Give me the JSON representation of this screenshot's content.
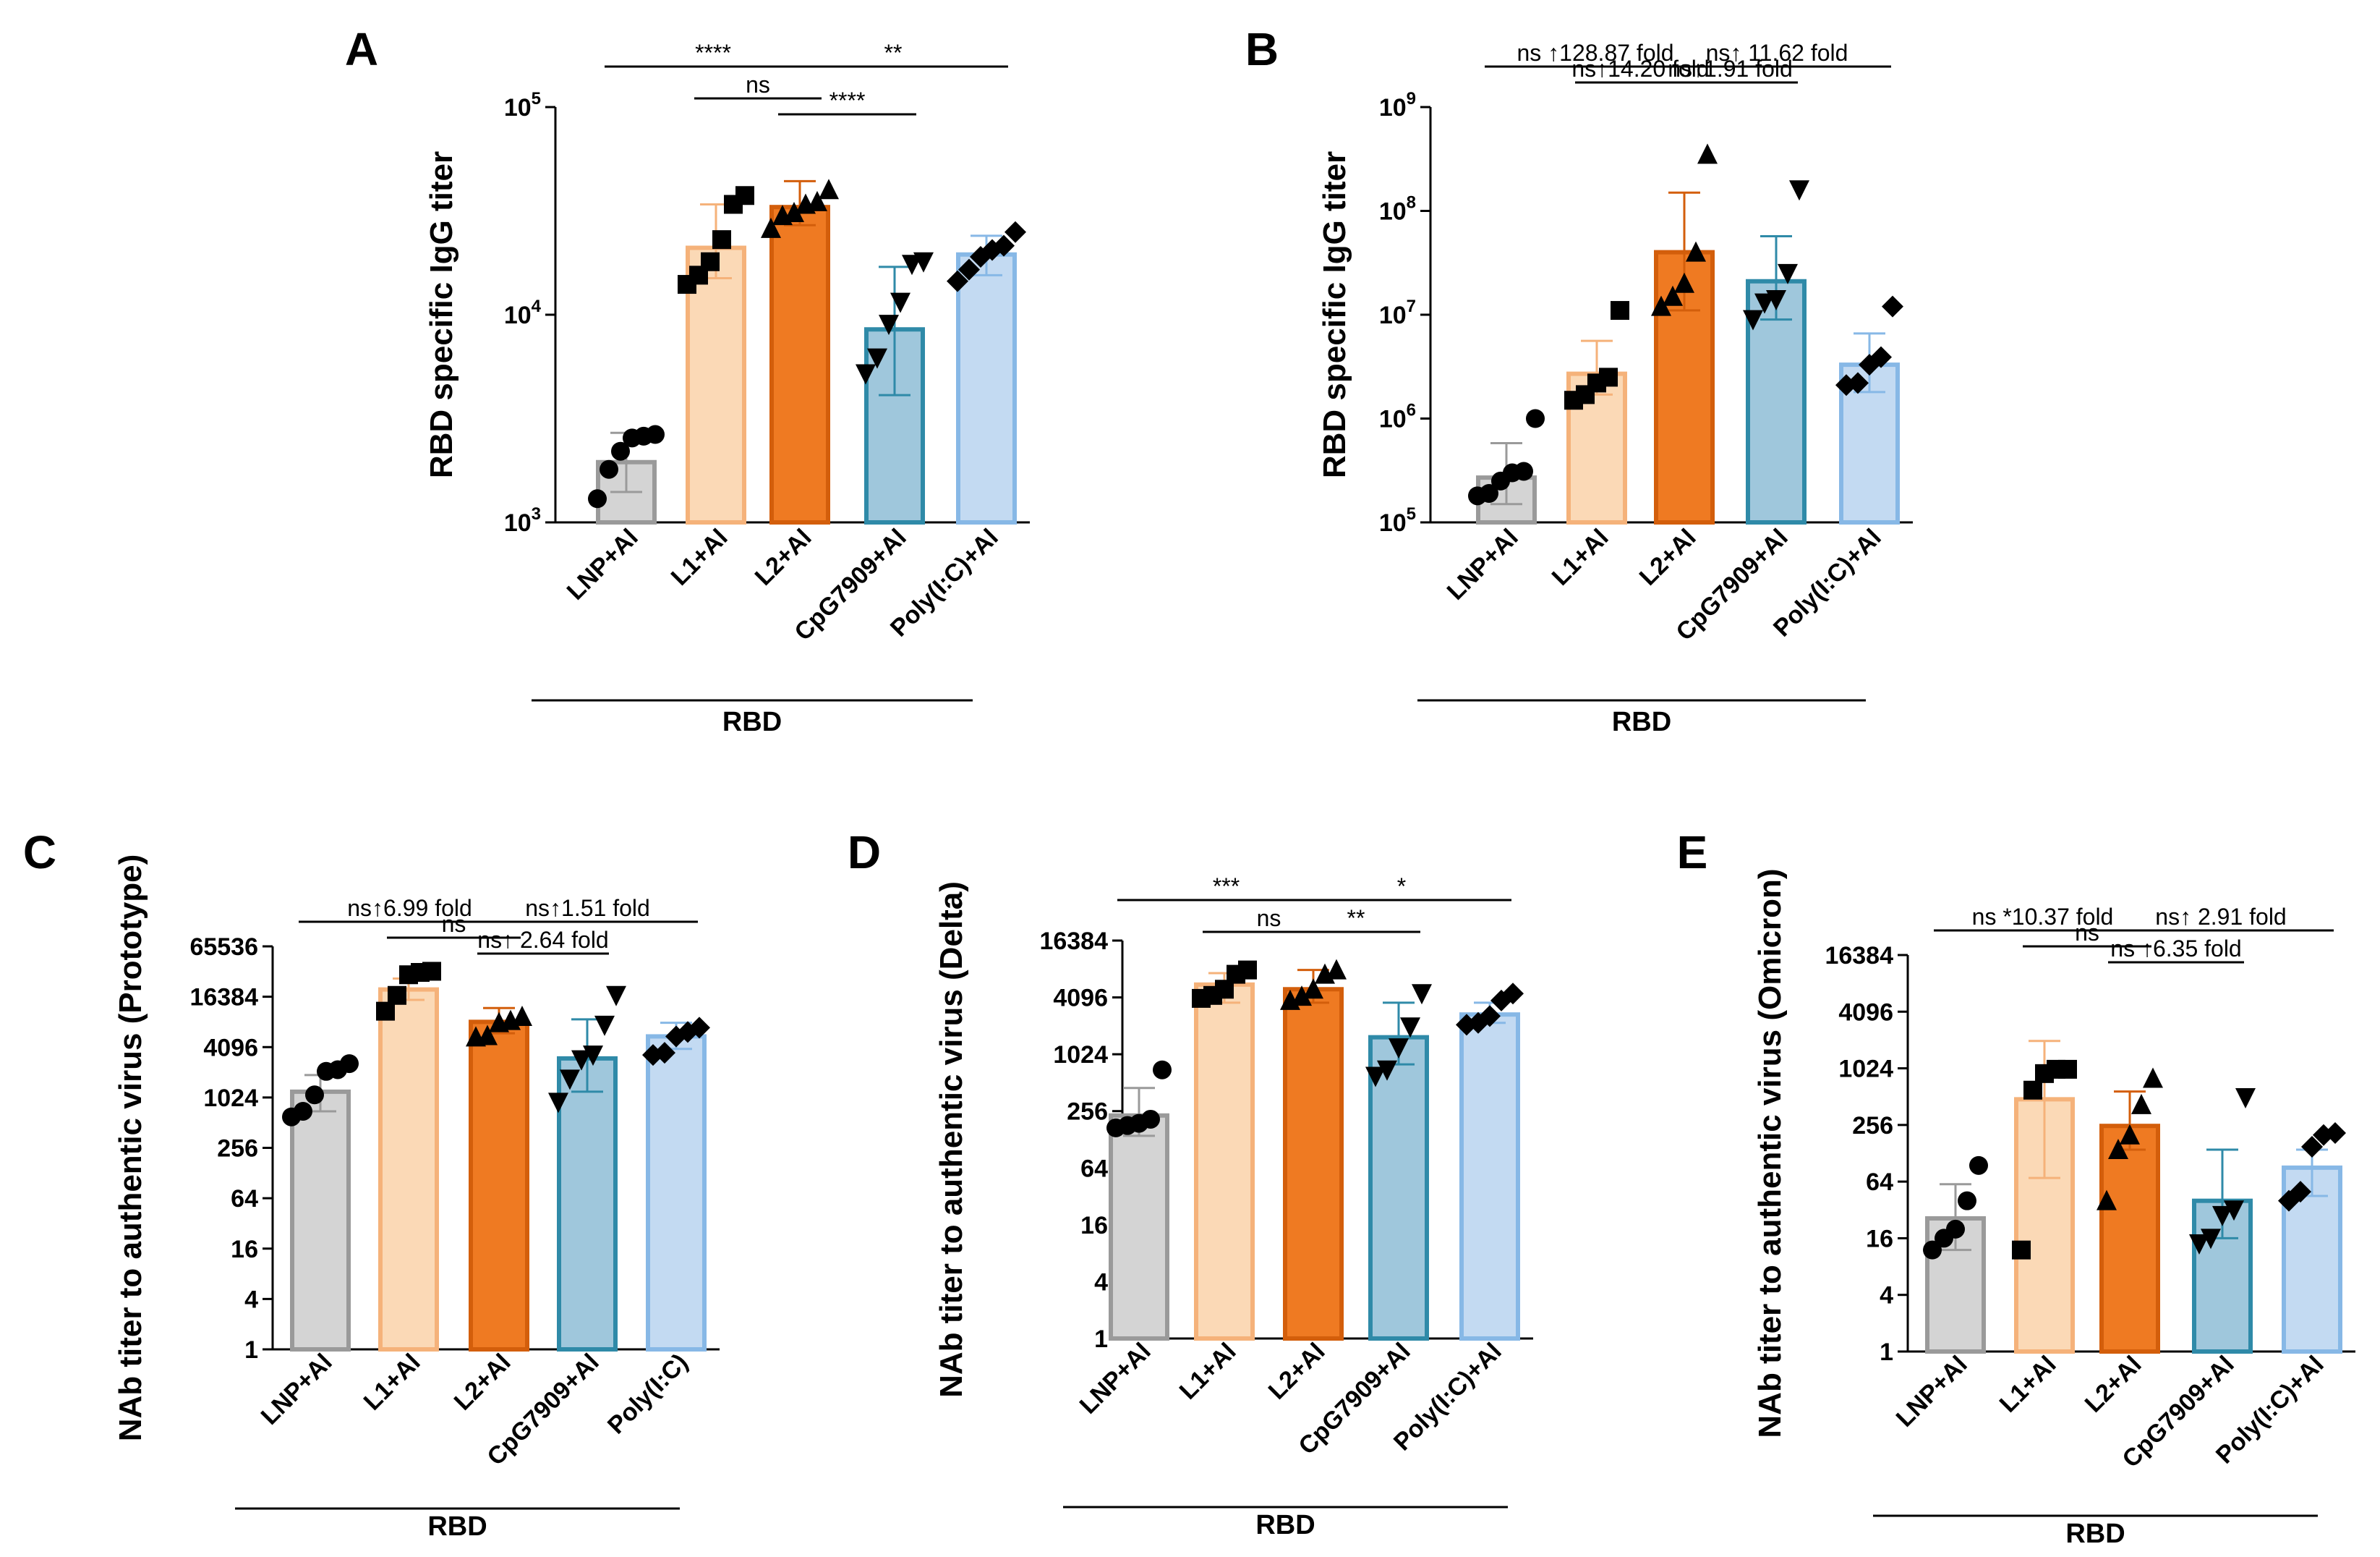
{
  "colors": {
    "LNP+Al": {
      "fill": "#d4d4d4",
      "edge": "#9a9a9a"
    },
    "L1+Al": {
      "fill": "#fbd9b6",
      "edge": "#f5b27a"
    },
    "L2+Al": {
      "fill": "#ef7a22",
      "edge": "#d35e0b"
    },
    "CpG7909+Al": {
      "fill": "#9fc7dc",
      "edge": "#2f8aa8"
    },
    "Poly(I:C)+Al": {
      "fill": "#c3daf2",
      "edge": "#87b8e6"
    }
  },
  "markers": [
    "circle",
    "square",
    "triangle",
    "triangle-down",
    "diamond"
  ],
  "chart_data": [
    {
      "panel": "A",
      "type": "bar",
      "yscale": "log10",
      "ylabel": "RBD specific IgG titer",
      "ylim": [
        1000,
        100000
      ],
      "ticks": [
        {
          "v": 1000,
          "b": "10",
          "e": "3"
        },
        {
          "v": 10000,
          "b": "10",
          "e": "4"
        },
        {
          "v": 100000,
          "b": "10",
          "e": "5"
        }
      ],
      "categories": [
        "LNP+Al",
        "L1+Al",
        "L2+Al",
        "CpG7909+Al",
        "Poly(I:C)+Al"
      ],
      "group_label": "RBD",
      "values": [
        1950,
        21000,
        33000,
        8500,
        19500
      ],
      "err_low": [
        1400,
        15000,
        27000,
        4100,
        15500
      ],
      "err_high": [
        2700,
        34000,
        44000,
        17000,
        24000
      ],
      "points": [
        [
          1300,
          1800,
          2200,
          2550,
          2600,
          2650
        ],
        [
          14000,
          15500,
          18000,
          23000,
          34000,
          37500
        ],
        [
          26000,
          30000,
          31000,
          34000,
          35000,
          40000
        ],
        [
          5200,
          6200,
          9000,
          11500,
          17500,
          18000
        ],
        [
          14500,
          16500,
          19000,
          20500,
          21500,
          25000
        ]
      ],
      "sig": [
        {
          "from": 0,
          "to": 2,
          "text": "****",
          "level": 3
        },
        {
          "from": 1,
          "to": 2,
          "text": "ns",
          "level": 1
        },
        {
          "from": 2,
          "to": 4,
          "text": "**",
          "level": 3
        },
        {
          "from": 2,
          "to": 3,
          "text": "****",
          "level": 0
        }
      ]
    },
    {
      "panel": "B",
      "type": "bar",
      "yscale": "log10",
      "ylabel": "RBD specific IgG titer",
      "ylim": [
        100000,
        1000000000
      ],
      "ticks": [
        {
          "v": 100000,
          "b": "10",
          "e": "5"
        },
        {
          "v": 1000000,
          "b": "10",
          "e": "6"
        },
        {
          "v": 10000000,
          "b": "10",
          "e": "7"
        },
        {
          "v": 100000000,
          "b": "10",
          "e": "8"
        },
        {
          "v": 1000000000,
          "b": "10",
          "e": "9"
        }
      ],
      "categories": [
        "LNP+Al",
        "L1+Al",
        "L2+Al",
        "CpG7909+Al",
        "Poly(I:C)+Al"
      ],
      "group_label": "RBD",
      "values": [
        270000,
        2700000,
        40000000,
        21000000,
        3300000
      ],
      "err_low": [
        150000,
        1700000,
        11000000,
        9000000,
        1800000
      ],
      "err_high": [
        580000,
        5600000,
        150000000,
        57000000,
        6600000
      ],
      "points": [
        [
          180000,
          190000,
          250000,
          300000,
          310000,
          1000000
        ],
        [
          1500000,
          1700000,
          2200000,
          2500000,
          11000000
        ],
        [
          12000000,
          15000000,
          20000000,
          40000000,
          350000000
        ],
        [
          9000000,
          13000000,
          14000000,
          25000000,
          160000000
        ],
        [
          2100000,
          2200000,
          3300000,
          3900000,
          12000000
        ]
      ],
      "sig": [
        {
          "from": 0,
          "to": 2,
          "text": "ns ↑128.87 fold",
          "level": 3
        },
        {
          "from": 2,
          "to": 4,
          "text": "ns↑ 11.62 fold",
          "level": 3
        },
        {
          "from": 1,
          "to": 2,
          "text": "ns↑14.20 fold",
          "level": 2
        },
        {
          "from": 2,
          "to": 3,
          "text": "ns↑1.91 fold",
          "level": 2
        }
      ]
    },
    {
      "panel": "C",
      "type": "bar",
      "yscale": "log2",
      "ylabel": "NAb titer to authentic virus (Prototype)",
      "ylim": [
        1,
        65536
      ],
      "ticks": [
        {
          "v": 1,
          "t": "1"
        },
        {
          "v": 4,
          "t": "4"
        },
        {
          "v": 16,
          "t": "16"
        },
        {
          "v": 64,
          "t": "64"
        },
        {
          "v": 256,
          "t": "256"
        },
        {
          "v": 1024,
          "t": "1024"
        },
        {
          "v": 4096,
          "t": "4096"
        },
        {
          "v": 16384,
          "t": "16384"
        },
        {
          "v": 65536,
          "t": "65536"
        }
      ],
      "categories": [
        "LNP+Al",
        "L1+Al",
        "L2+Al",
        "CpG7909+Al",
        "Poly(I:C)"
      ],
      "group_label": "RBD",
      "values": [
        1200,
        20000,
        8200,
        3000,
        5500
      ],
      "err_low": [
        700,
        15000,
        6000,
        1200,
        3900
      ],
      "err_high": [
        1900,
        27000,
        12000,
        8800,
        8000
      ],
      "points": [
        [
          600,
          700,
          1100,
          2100,
          2200,
          2600
        ],
        [
          11000,
          17000,
          30000,
          32000,
          33000
        ],
        [
          5400,
          5600,
          8000,
          8500,
          9500
        ],
        [
          900,
          1700,
          2900,
          3300,
          7500,
          17000
        ],
        [
          3300,
          3500,
          5500,
          6200,
          7000
        ]
      ],
      "sig": [
        {
          "from": 0,
          "to": 2,
          "text": "ns↑6.99 fold",
          "level": 2
        },
        {
          "from": 2,
          "to": 4,
          "text": "ns↑1.51 fold",
          "level": 2
        },
        {
          "from": 1,
          "to": 2,
          "text": "ns",
          "level": 1
        },
        {
          "from": 2,
          "to": 3,
          "text": "ns↑ 2.64 fold",
          "level": 0
        }
      ]
    },
    {
      "panel": "D",
      "type": "bar",
      "yscale": "log2",
      "ylabel": "NAb titer to authentic virus (Delta)",
      "ylim": [
        1,
        16384
      ],
      "ticks": [
        {
          "v": 1,
          "t": "1"
        },
        {
          "v": 4,
          "t": "4"
        },
        {
          "v": 16,
          "t": "16"
        },
        {
          "v": 64,
          "t": "64"
        },
        {
          "v": 256,
          "t": "256"
        },
        {
          "v": 1024,
          "t": "1024"
        },
        {
          "v": 4096,
          "t": "4096"
        },
        {
          "v": 16384,
          "t": "16384"
        }
      ],
      "categories": [
        "LNP+Al",
        "L1+Al",
        "L2+Al",
        "CpG7909+Al",
        "Poly(I:C)+Al"
      ],
      "group_label": "RBD",
      "values": [
        230,
        5600,
        5000,
        1550,
        2700
      ],
      "err_low": [
        140,
        3600,
        3600,
        800,
        2200
      ],
      "err_high": [
        450,
        7400,
        8000,
        3600,
        3600
      ],
      "points": [
        [
          170,
          180,
          190,
          210,
          700
        ],
        [
          4000,
          4300,
          5000,
          7200,
          8000
        ],
        [
          3800,
          4200,
          5000,
          7200,
          8000
        ],
        [
          600,
          700,
          1200,
          2000,
          4500
        ],
        [
          2100,
          2200,
          2600,
          3800,
          4500
        ]
      ],
      "sig": [
        {
          "from": 0,
          "to": 2,
          "text": "***",
          "level": 3
        },
        {
          "from": 1,
          "to": 2,
          "text": "ns",
          "level": 1
        },
        {
          "from": 2,
          "to": 4,
          "text": "*",
          "level": 3
        },
        {
          "from": 2,
          "to": 3,
          "text": "**",
          "level": 1
        }
      ]
    },
    {
      "panel": "E",
      "type": "bar",
      "yscale": "log2",
      "ylabel": "NAb titer to authentic virus (Omicron)",
      "ylim": [
        1,
        16384
      ],
      "ticks": [
        {
          "v": 1,
          "t": "1"
        },
        {
          "v": 4,
          "t": "4"
        },
        {
          "v": 16,
          "t": "16"
        },
        {
          "v": 64,
          "t": "64"
        },
        {
          "v": 256,
          "t": "256"
        },
        {
          "v": 1024,
          "t": "1024"
        },
        {
          "v": 4096,
          "t": "4096"
        },
        {
          "v": 16384,
          "t": "16384"
        }
      ],
      "categories": [
        "LNP+Al",
        "L1+Al",
        "L2+Al",
        "CpG7909+Al",
        "Poly(I:C)+Al"
      ],
      "group_label": "RBD",
      "values": [
        26,
        480,
        250,
        40,
        90
      ],
      "err_low": [
        12,
        70,
        140,
        16,
        45
      ],
      "err_high": [
        60,
        2000,
        580,
        140,
        140
      ],
      "points": [
        [
          12,
          16,
          20,
          40,
          95
        ],
        [
          12,
          600,
          900,
          1000,
          1000
        ],
        [
          40,
          140,
          200,
          420,
          800
        ],
        [
          14,
          16,
          28,
          32,
          500
        ],
        [
          40,
          50,
          150,
          200,
          210
        ]
      ],
      "sig": [
        {
          "from": 0,
          "to": 2,
          "text": "ns *10.37 fold",
          "level": 2
        },
        {
          "from": 1,
          "to": 2,
          "text": "ns",
          "level": 1
        },
        {
          "from": 2,
          "to": 4,
          "text": "ns↑ 2.91 fold",
          "level": 2
        },
        {
          "from": 2,
          "to": 3,
          "text": "ns ↑6.35 fold",
          "level": 0
        }
      ]
    }
  ]
}
